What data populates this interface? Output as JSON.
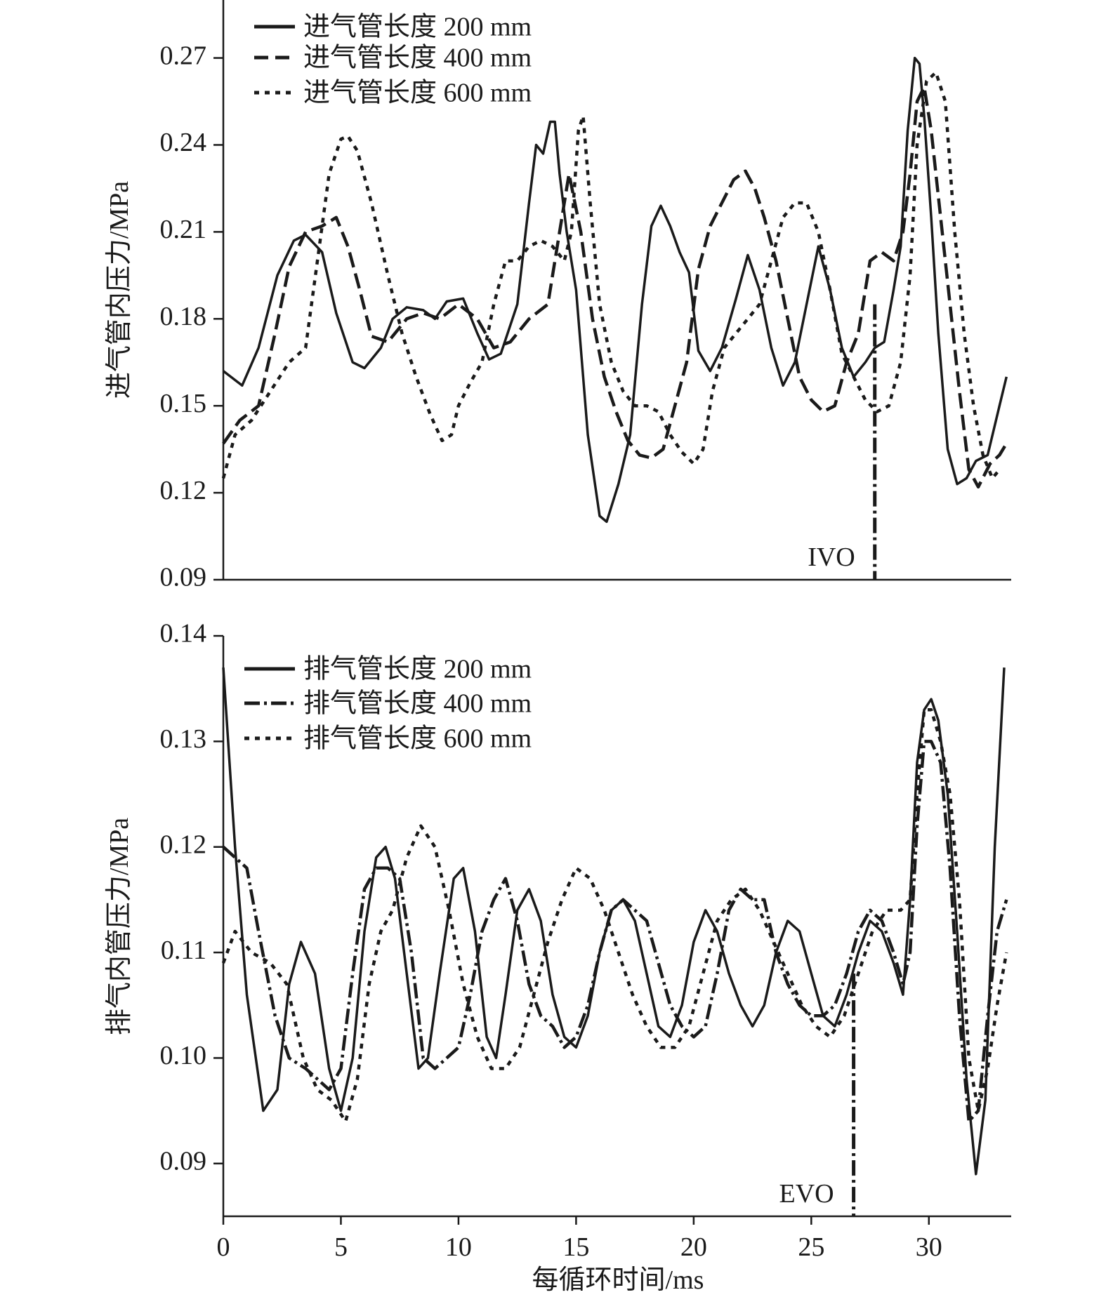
{
  "chart_data": [
    {
      "type": "line",
      "ylabel": "进气管内压力/MPa",
      "xlabel": "",
      "xlim": [
        0,
        33.5
      ],
      "ylim": [
        0.09,
        0.29
      ],
      "yticks": [
        "0.09",
        "0.12",
        "0.15",
        "0.18",
        "0.21",
        "0.24",
        "0.27"
      ],
      "legend_position": "top-left",
      "marker": {
        "label": "IVO",
        "x": 27.7,
        "from": 0.09,
        "to": 0.185
      },
      "series": [
        {
          "name": "进气管长度 200 mm",
          "dash": "solid",
          "x": [
            0,
            0.8,
            1.5,
            2.3,
            3.0,
            3.5,
            4.2,
            4.8,
            5.5,
            6.0,
            6.7,
            7.2,
            7.8,
            8.5,
            9.0,
            9.5,
            10.2,
            10.8,
            11.3,
            11.8,
            12.5,
            13.0,
            13.3,
            13.6,
            13.9,
            14.1,
            14.3,
            14.6,
            15.0,
            15.5,
            16.0,
            16.3,
            16.8,
            17.3,
            17.8,
            18.2,
            18.6,
            19.0,
            19.4,
            19.8,
            20.2,
            20.7,
            21.2,
            21.8,
            22.3,
            22.8,
            23.3,
            23.8,
            24.3,
            24.8,
            25.3,
            25.8,
            26.3,
            26.8,
            27.3,
            27.7,
            28.1,
            28.5,
            28.8,
            29.1,
            29.4,
            29.6,
            29.8,
            30.1,
            30.4,
            30.8,
            31.2,
            31.6,
            32.0,
            32.5,
            33.0,
            33.3
          ],
          "y": [
            0.162,
            0.157,
            0.17,
            0.195,
            0.207,
            0.209,
            0.203,
            0.182,
            0.165,
            0.163,
            0.17,
            0.18,
            0.184,
            0.183,
            0.18,
            0.186,
            0.187,
            0.175,
            0.166,
            0.168,
            0.185,
            0.22,
            0.24,
            0.237,
            0.248,
            0.248,
            0.23,
            0.21,
            0.19,
            0.14,
            0.112,
            0.11,
            0.123,
            0.14,
            0.185,
            0.212,
            0.219,
            0.212,
            0.203,
            0.196,
            0.169,
            0.162,
            0.17,
            0.187,
            0.202,
            0.19,
            0.17,
            0.157,
            0.165,
            0.185,
            0.205,
            0.19,
            0.17,
            0.16,
            0.165,
            0.17,
            0.172,
            0.19,
            0.205,
            0.245,
            0.27,
            0.268,
            0.25,
            0.215,
            0.175,
            0.135,
            0.123,
            0.125,
            0.131,
            0.133,
            0.15,
            0.16
          ]
        },
        {
          "name": "进气管长度 400 mm",
          "dash": "longdash",
          "x": [
            0,
            0.7,
            1.5,
            2.2,
            2.8,
            3.5,
            4.2,
            4.8,
            5.3,
            5.8,
            6.3,
            7.0,
            7.8,
            8.5,
            9.2,
            10.0,
            10.8,
            11.5,
            12.2,
            13.0,
            13.8,
            14.3,
            14.7,
            15.2,
            15.7,
            16.2,
            16.7,
            17.2,
            17.7,
            18.2,
            18.7,
            19.2,
            19.7,
            20.2,
            20.7,
            21.2,
            21.7,
            22.2,
            22.6,
            23.0,
            23.5,
            24.0,
            24.5,
            25.0,
            25.5,
            26.0,
            26.5,
            27.0,
            27.5,
            28.0,
            28.5,
            28.9,
            29.2,
            29.5,
            29.8,
            30.1,
            30.5,
            30.9,
            31.3,
            31.7,
            32.1,
            32.6,
            33.0,
            33.3
          ],
          "y": [
            0.137,
            0.145,
            0.15,
            0.175,
            0.198,
            0.21,
            0.212,
            0.215,
            0.205,
            0.19,
            0.174,
            0.172,
            0.18,
            0.182,
            0.18,
            0.185,
            0.18,
            0.17,
            0.172,
            0.18,
            0.185,
            0.21,
            0.23,
            0.21,
            0.18,
            0.16,
            0.148,
            0.138,
            0.133,
            0.132,
            0.135,
            0.15,
            0.165,
            0.197,
            0.212,
            0.22,
            0.228,
            0.231,
            0.225,
            0.215,
            0.2,
            0.18,
            0.16,
            0.152,
            0.148,
            0.15,
            0.165,
            0.175,
            0.2,
            0.203,
            0.2,
            0.21,
            0.23,
            0.255,
            0.26,
            0.245,
            0.215,
            0.185,
            0.155,
            0.128,
            0.122,
            0.13,
            0.133,
            0.137
          ]
        },
        {
          "name": "进气管长度 600 mm",
          "dash": "dotted",
          "x": [
            0,
            0.5,
            1.2,
            2.0,
            2.8,
            3.5,
            4.0,
            4.5,
            5.0,
            5.3,
            5.7,
            6.3,
            7.0,
            7.6,
            8.2,
            8.8,
            9.3,
            9.7,
            10.0,
            10.5,
            11.0,
            11.5,
            12.0,
            12.5,
            13.0,
            13.5,
            14.0,
            14.5,
            14.8,
            15.1,
            15.3,
            15.6,
            16.0,
            16.5,
            17.0,
            17.5,
            18.0,
            18.5,
            19.0,
            19.5,
            20.0,
            20.4,
            20.8,
            21.3,
            21.8,
            22.3,
            22.8,
            23.3,
            23.8,
            24.3,
            24.8,
            25.3,
            25.8,
            26.3,
            26.8,
            27.3,
            27.8,
            28.3,
            28.8,
            29.2,
            29.5,
            29.9,
            30.3,
            30.7,
            31.1,
            31.5,
            31.9,
            32.3,
            32.7,
            33.0
          ],
          "y": [
            0.125,
            0.14,
            0.145,
            0.155,
            0.165,
            0.17,
            0.2,
            0.23,
            0.242,
            0.243,
            0.238,
            0.22,
            0.195,
            0.175,
            0.16,
            0.147,
            0.138,
            0.14,
            0.15,
            0.158,
            0.165,
            0.185,
            0.2,
            0.2,
            0.205,
            0.207,
            0.205,
            0.2,
            0.21,
            0.245,
            0.25,
            0.22,
            0.185,
            0.165,
            0.155,
            0.15,
            0.15,
            0.148,
            0.14,
            0.134,
            0.13,
            0.135,
            0.155,
            0.17,
            0.175,
            0.18,
            0.185,
            0.2,
            0.215,
            0.22,
            0.22,
            0.21,
            0.19,
            0.168,
            0.16,
            0.152,
            0.148,
            0.15,
            0.165,
            0.195,
            0.24,
            0.262,
            0.265,
            0.255,
            0.21,
            0.175,
            0.15,
            0.133,
            0.125,
            0.128
          ]
        }
      ]
    },
    {
      "type": "line",
      "ylabel": "排气内管压力/MPa",
      "xlabel": "每循环时间/ms",
      "xlim": [
        0,
        33.5
      ],
      "ylim": [
        0.085,
        0.14
      ],
      "xticks": [
        "0",
        "5",
        "10",
        "15",
        "20",
        "25",
        "30"
      ],
      "yticks": [
        "0.09",
        "0.10",
        "0.11",
        "0.12",
        "0.13",
        "0.14"
      ],
      "legend_position": "top-left",
      "marker": {
        "label": "EVO",
        "x": 26.8,
        "from": 0.085,
        "to": 0.108
      },
      "series": [
        {
          "name": "排气管长度 200 mm",
          "dash": "solid",
          "x": [
            0,
            0.5,
            1.0,
            1.7,
            2.3,
            2.8,
            3.3,
            3.9,
            4.5,
            5.0,
            5.5,
            6.0,
            6.5,
            6.9,
            7.3,
            7.8,
            8.3,
            8.7,
            9.2,
            9.8,
            10.2,
            10.7,
            11.2,
            11.6,
            12.0,
            12.5,
            13.0,
            13.5,
            14.0,
            14.5,
            15.0,
            15.5,
            16.0,
            16.5,
            17.0,
            17.5,
            18.0,
            18.5,
            19.0,
            19.5,
            20.0,
            20.5,
            21.0,
            21.5,
            22.0,
            22.5,
            23.0,
            23.5,
            24.0,
            24.5,
            25.0,
            25.5,
            26.0,
            26.5,
            27.0,
            27.5,
            28.0,
            28.5,
            28.9,
            29.2,
            29.5,
            29.8,
            30.1,
            30.4,
            30.8,
            31.2,
            31.6,
            32.0,
            32.4,
            32.8,
            33.2
          ],
          "y": [
            0.137,
            0.12,
            0.106,
            0.095,
            0.097,
            0.107,
            0.111,
            0.108,
            0.099,
            0.095,
            0.1,
            0.112,
            0.119,
            0.12,
            0.117,
            0.108,
            0.099,
            0.1,
            0.108,
            0.117,
            0.118,
            0.112,
            0.102,
            0.1,
            0.106,
            0.114,
            0.116,
            0.113,
            0.106,
            0.102,
            0.101,
            0.104,
            0.11,
            0.114,
            0.115,
            0.113,
            0.108,
            0.103,
            0.102,
            0.105,
            0.111,
            0.114,
            0.112,
            0.108,
            0.105,
            0.103,
            0.105,
            0.11,
            0.113,
            0.112,
            0.108,
            0.104,
            0.103,
            0.106,
            0.11,
            0.113,
            0.112,
            0.109,
            0.106,
            0.115,
            0.128,
            0.133,
            0.134,
            0.132,
            0.125,
            0.112,
            0.098,
            0.089,
            0.096,
            0.12,
            0.137
          ]
        },
        {
          "name": "排气管长度 400 mm",
          "dash": "dashdot",
          "x": [
            0,
            0.5,
            1.0,
            1.5,
            2.2,
            2.8,
            3.5,
            4.0,
            4.5,
            5.0,
            5.5,
            6.0,
            6.5,
            7.0,
            7.5,
            8.0,
            8.5,
            9.0,
            9.5,
            10.0,
            10.5,
            11.0,
            11.5,
            12.0,
            12.5,
            13.0,
            13.5,
            14.0,
            14.5,
            15.0,
            15.5,
            16.0,
            16.5,
            17.0,
            17.5,
            18.0,
            18.5,
            19.0,
            19.5,
            20.0,
            20.5,
            21.0,
            21.5,
            22.0,
            22.5,
            23.0,
            23.5,
            24.0,
            24.5,
            25.0,
            25.5,
            26.0,
            26.5,
            27.0,
            27.5,
            28.0,
            28.5,
            28.9,
            29.2,
            29.5,
            29.8,
            30.1,
            30.5,
            30.9,
            31.3,
            31.7,
            32.1,
            32.5,
            32.9,
            33.3
          ],
          "y": [
            0.12,
            0.119,
            0.118,
            0.112,
            0.104,
            0.1,
            0.099,
            0.098,
            0.097,
            0.099,
            0.108,
            0.116,
            0.118,
            0.118,
            0.117,
            0.11,
            0.1,
            0.099,
            0.1,
            0.101,
            0.106,
            0.112,
            0.115,
            0.117,
            0.113,
            0.107,
            0.104,
            0.103,
            0.101,
            0.102,
            0.105,
            0.11,
            0.114,
            0.115,
            0.114,
            0.113,
            0.109,
            0.105,
            0.103,
            0.102,
            0.103,
            0.108,
            0.114,
            0.116,
            0.115,
            0.115,
            0.11,
            0.107,
            0.105,
            0.104,
            0.104,
            0.105,
            0.108,
            0.112,
            0.114,
            0.113,
            0.11,
            0.107,
            0.11,
            0.122,
            0.13,
            0.13,
            0.128,
            0.118,
            0.104,
            0.094,
            0.095,
            0.104,
            0.112,
            0.115
          ]
        },
        {
          "name": "排气管长度 600 mm",
          "dash": "dotted",
          "x": [
            0,
            0.5,
            1.2,
            2.0,
            2.7,
            3.4,
            4.0,
            4.6,
            5.2,
            5.7,
            6.2,
            6.7,
            7.2,
            7.8,
            8.4,
            9.0,
            9.6,
            10.2,
            10.8,
            11.4,
            12.0,
            12.6,
            13.2,
            13.8,
            14.4,
            15.0,
            15.6,
            16.2,
            16.8,
            17.4,
            18.0,
            18.6,
            19.2,
            19.8,
            20.4,
            21.0,
            21.6,
            22.2,
            22.8,
            23.4,
            24.0,
            24.6,
            25.2,
            25.8,
            26.4,
            27.0,
            27.6,
            28.2,
            28.8,
            29.2,
            29.5,
            29.8,
            30.1,
            30.5,
            30.9,
            31.3,
            31.7,
            32.1,
            32.5,
            32.9,
            33.3
          ],
          "y": [
            0.109,
            0.112,
            0.11,
            0.109,
            0.107,
            0.1,
            0.097,
            0.096,
            0.094,
            0.098,
            0.107,
            0.112,
            0.114,
            0.119,
            0.122,
            0.12,
            0.114,
            0.107,
            0.102,
            0.099,
            0.099,
            0.101,
            0.106,
            0.111,
            0.115,
            0.118,
            0.117,
            0.114,
            0.11,
            0.106,
            0.103,
            0.101,
            0.101,
            0.103,
            0.108,
            0.113,
            0.115,
            0.116,
            0.114,
            0.111,
            0.108,
            0.105,
            0.103,
            0.102,
            0.104,
            0.108,
            0.112,
            0.114,
            0.114,
            0.115,
            0.125,
            0.133,
            0.133,
            0.13,
            0.125,
            0.115,
            0.1,
            0.095,
            0.099,
            0.105,
            0.11
          ]
        }
      ]
    }
  ]
}
